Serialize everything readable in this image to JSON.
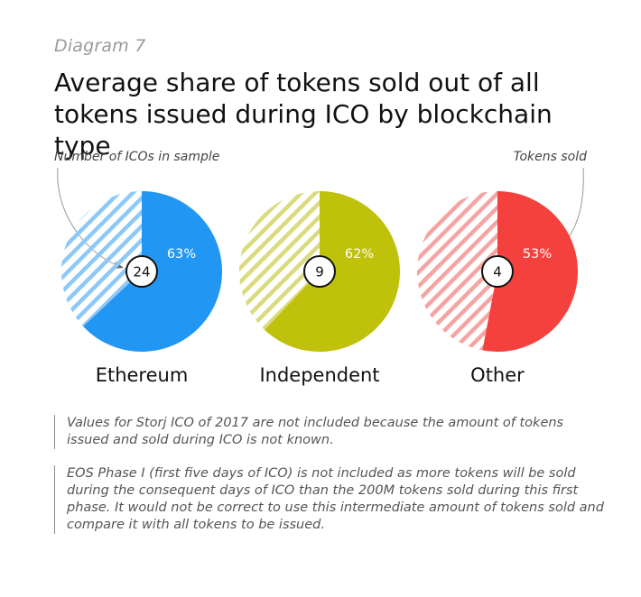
{
  "diagram_label": "Diagram 7",
  "title": "Average share of tokens sold out of all tokens issued during ICO by blockchain type",
  "callouts": {
    "sample": "Number of ICOs in sample",
    "sold": "Tokens sold"
  },
  "chart_data": {
    "type": "pie",
    "title": "Average share of tokens sold out of all tokens issued during ICO by blockchain type",
    "unit": "%",
    "series": [
      {
        "name": "Ethereum",
        "sold_pct": 63,
        "label": "63%",
        "sample_size": 24,
        "color": "#2196f3",
        "hatch_color": "#8ec8f7"
      },
      {
        "name": "Independent",
        "sold_pct": 62,
        "label": "62%",
        "sample_size": 9,
        "color": "#bfc10a",
        "hatch_color": "#d9db7c"
      },
      {
        "name": "Other",
        "sold_pct": 53,
        "label": "53%",
        "sample_size": 4,
        "color": "#f5413d",
        "hatch_color": "#f6a4a2"
      }
    ]
  },
  "notes": [
    "Values for Storj ICO of 2017 are not included because the amount of tokens issued and sold during ICO is not known.",
    "EOS Phase I (first five days of ICO) is not included as more tokens will be sold during the consequent days of ICO than the 200M tokens sold during this first phase. It would not be correct to use this intermediate amount of tokens sold and compare it with all tokens to be issued."
  ]
}
